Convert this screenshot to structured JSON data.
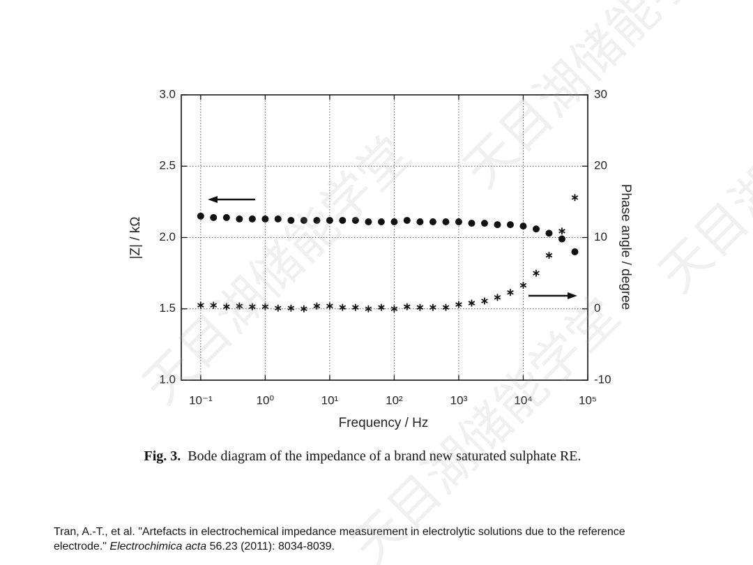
{
  "chart_data": {
    "type": "scatter",
    "xlabel": "Frequency  /  Hz",
    "ylabel": "|Z|  /  kΩ",
    "y2label": "Phase angle  /  degree",
    "log_x": true,
    "grid": true,
    "x": [
      0.1,
      0.158,
      0.251,
      0.398,
      0.631,
      1,
      1.58,
      2.51,
      3.98,
      6.31,
      10,
      15.8,
      25.1,
      39.8,
      63.1,
      100,
      158,
      251,
      398,
      631,
      1000,
      1585,
      2512,
      3981,
      6310,
      10000,
      15849,
      25119,
      39811,
      63096
    ],
    "series": [
      {
        "marker": "circle",
        "color": "#111111",
        "axis": "y",
        "values": [
          2.15,
          2.14,
          2.14,
          2.13,
          2.13,
          2.13,
          2.13,
          2.12,
          2.12,
          2.12,
          2.12,
          2.12,
          2.12,
          2.11,
          2.11,
          2.11,
          2.12,
          2.11,
          2.11,
          2.11,
          2.11,
          2.1,
          2.1,
          2.09,
          2.09,
          2.08,
          2.06,
          2.03,
          1.99,
          1.9
        ]
      },
      {
        "marker": "asterisk",
        "color": "#111111",
        "axis": "y2",
        "values": [
          0.5,
          0.5,
          0.3,
          0.4,
          0.3,
          0.3,
          0.1,
          0.1,
          0.0,
          0.4,
          0.4,
          0.2,
          0.2,
          0.0,
          0.2,
          0.0,
          0.3,
          0.2,
          0.2,
          0.2,
          0.6,
          0.8,
          1.1,
          1.6,
          2.3,
          3.3,
          5.0,
          7.5,
          10.9,
          15.6
        ]
      }
    ],
    "xlim": [
      0.05,
      100000
    ],
    "xticks": [
      {
        "value": 0.1,
        "label": "10⁻¹"
      },
      {
        "value": 1,
        "label": "10⁰"
      },
      {
        "value": 10,
        "label": "10¹"
      },
      {
        "value": 100,
        "label": "10²"
      },
      {
        "value": 1000,
        "label": "10³"
      },
      {
        "value": 10000,
        "label": "10⁴"
      },
      {
        "value": 100000,
        "label": "10⁵"
      }
    ],
    "ylim": [
      1,
      3
    ],
    "yticks": [
      {
        "value": 1,
        "label": "1.0"
      },
      1.5,
      {
        "value": 2,
        "label": "2.0"
      },
      2.5,
      {
        "value": 3,
        "label": "3.0"
      }
    ],
    "y2lim": [
      -10,
      30
    ],
    "y2ticks": [
      -10,
      0,
      10,
      20,
      30
    ]
  },
  "caption": {
    "label": "Fig. 3.",
    "text": "Bode diagram of the impedance of a brand new saturated sulphate RE."
  },
  "citation": {
    "before": "Tran, A.-T., et al. \"Artefacts in electrochemical impedance measurement in electrolytic solutions due to the reference electrode.\"",
    "journal": "Electrochimica acta",
    "after": "56.23 (2011): 8034-8039."
  },
  "watermark": "天目湖储能学堂"
}
